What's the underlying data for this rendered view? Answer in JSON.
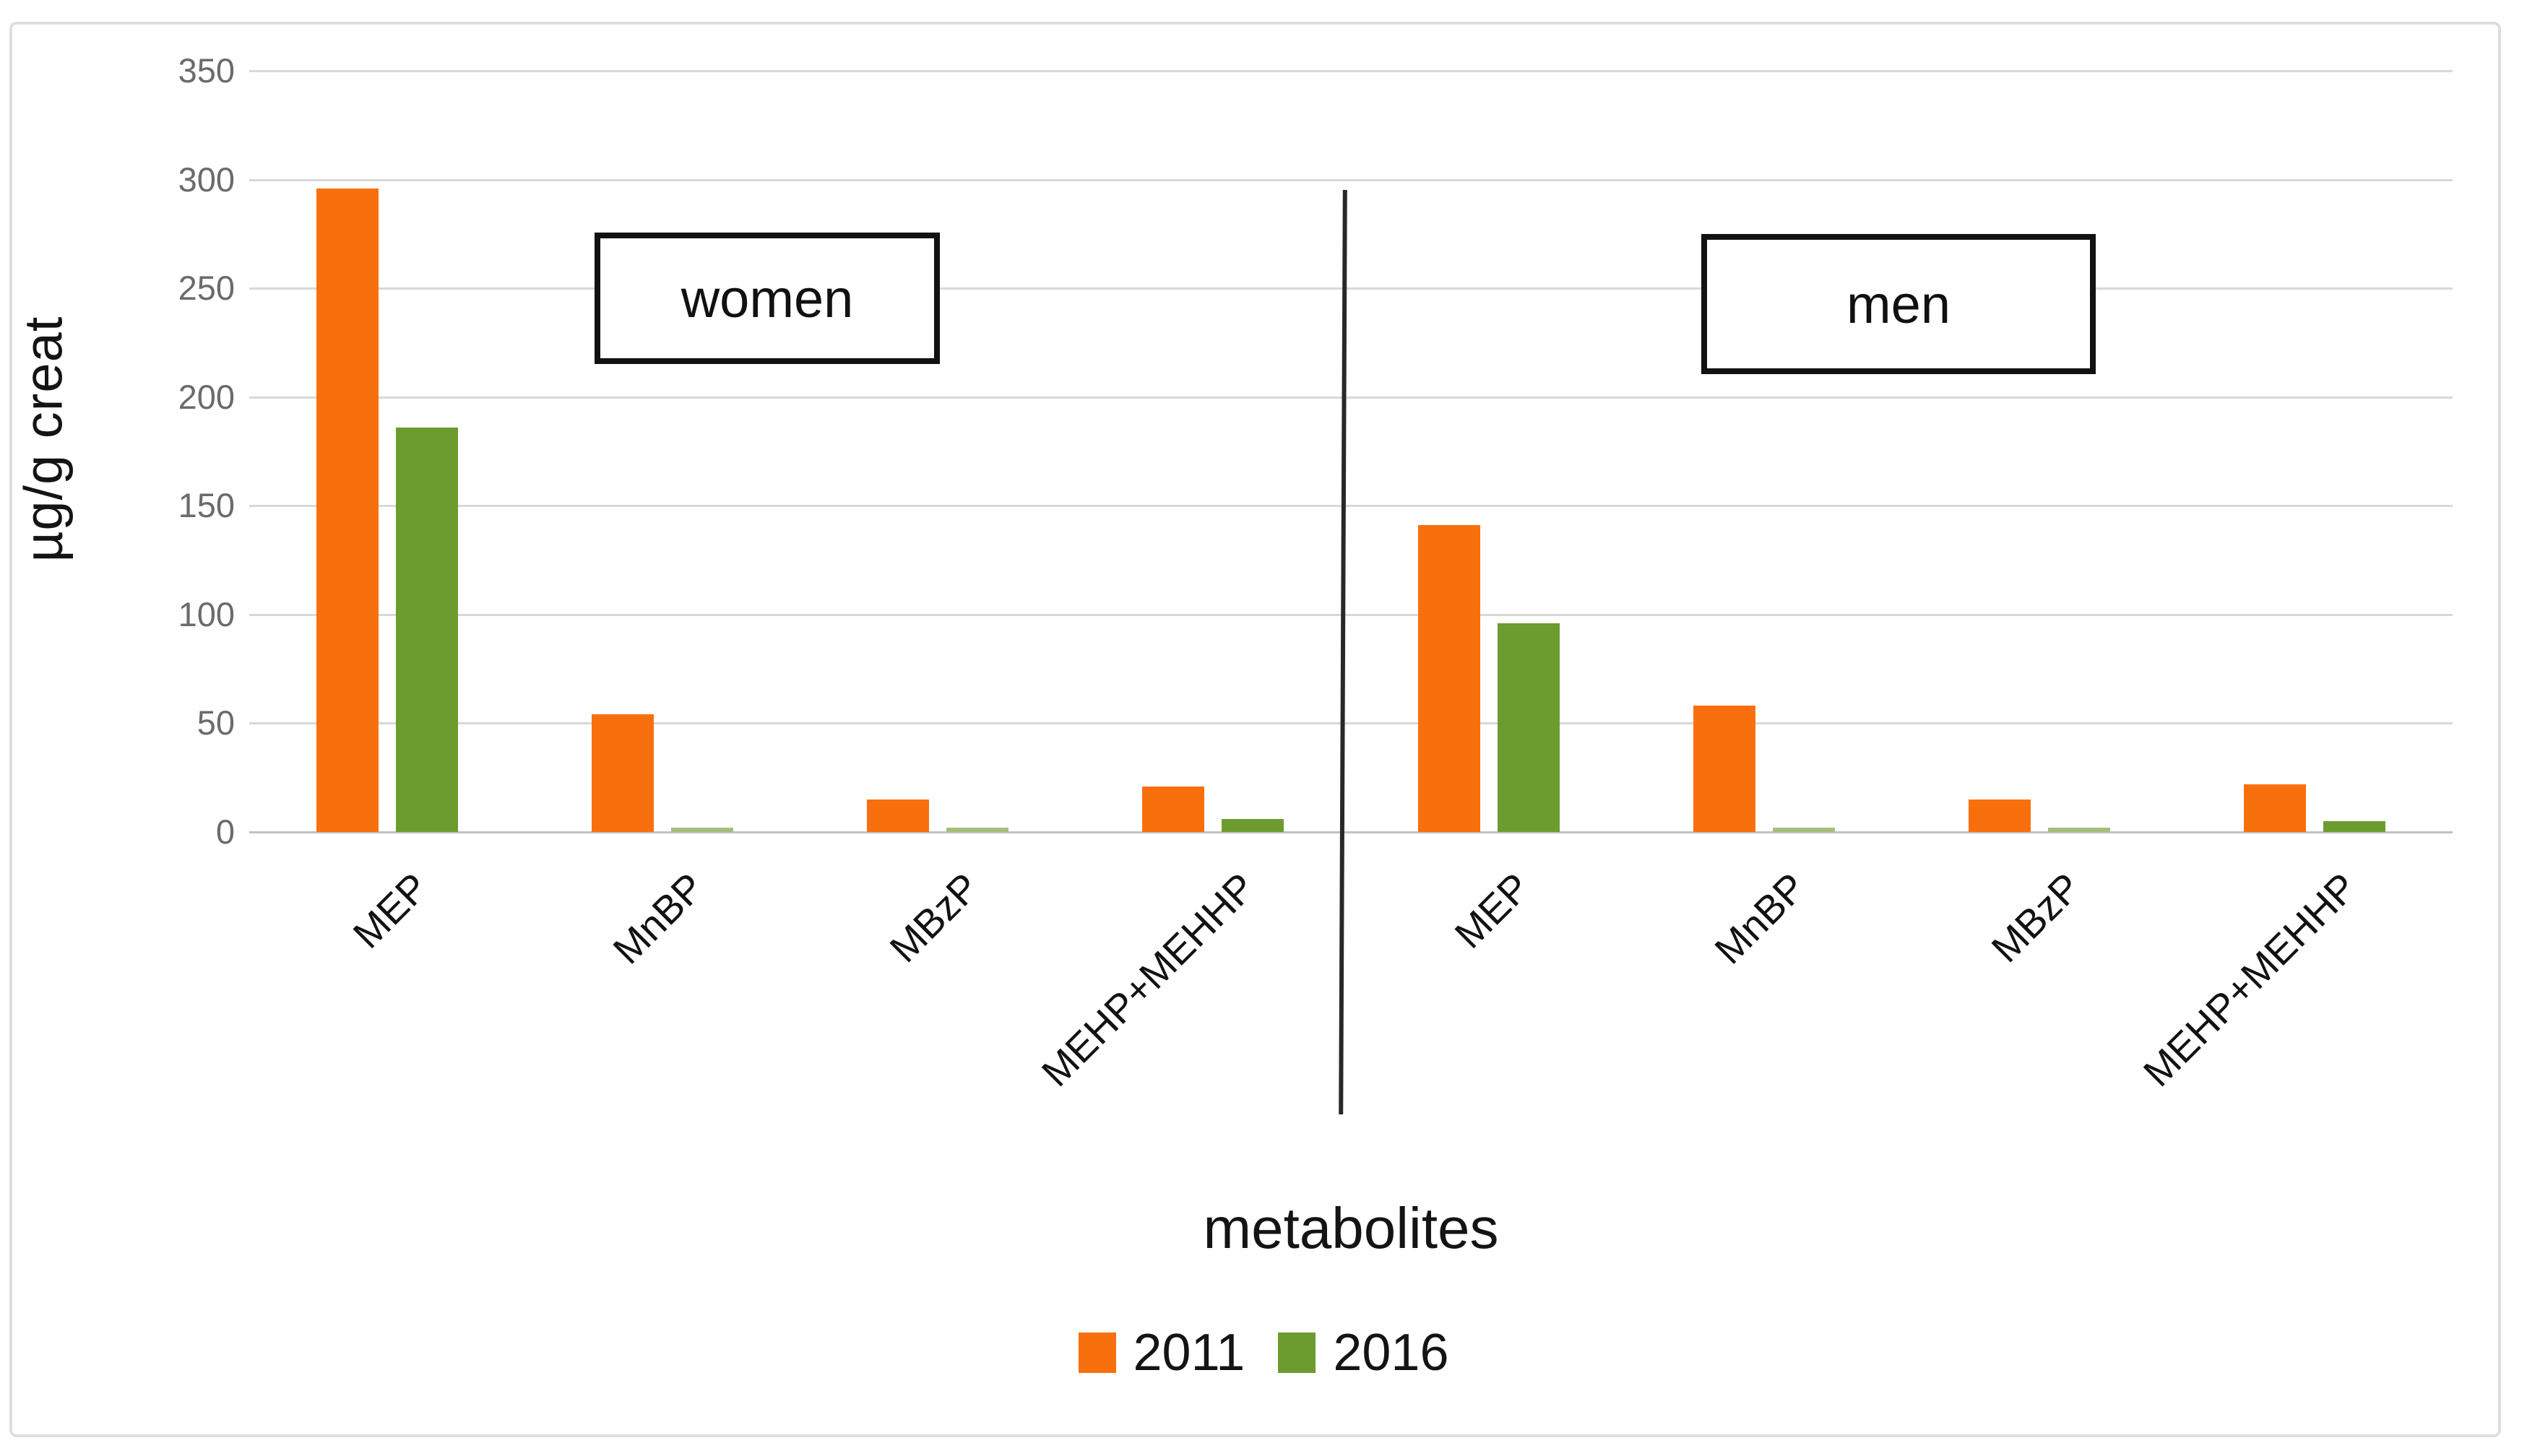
{
  "figure": {
    "background": "#ffffff",
    "border_color": "#dedede"
  },
  "chart_data": {
    "type": "bar",
    "title": "",
    "ylabel": "µg/g creat",
    "xlabel": "metabolites",
    "ylim": [
      0,
      350
    ],
    "ytick_step": 50,
    "yticks": [
      "350",
      "300",
      "250",
      "200",
      "150",
      "100",
      "50",
      "0"
    ],
    "grid": true,
    "legend_position": "bottom",
    "panels": [
      {
        "label": "women",
        "categories": [
          "MEP",
          "MnBP",
          "MBzP",
          "MEHP+MEHHP"
        ],
        "series": [
          {
            "name": "2011",
            "values": [
              296,
              54,
              15,
              21
            ]
          },
          {
            "name": "2016",
            "values": [
              186,
              2,
              2,
              6
            ]
          }
        ]
      },
      {
        "label": "men",
        "categories": [
          "MEP",
          "MnBP",
          "MBzP",
          "MEHP+MEHHP"
        ],
        "series": [
          {
            "name": "2011",
            "values": [
              141,
              58,
              15,
              22
            ]
          },
          {
            "name": "2016",
            "values": [
              96,
              2,
              2,
              5
            ]
          }
        ]
      }
    ],
    "legend": {
      "entries": [
        {
          "label": "2011",
          "color": "#f8700e"
        },
        {
          "label": "2016",
          "color": "#6c9c30"
        }
      ]
    },
    "colors": {
      "series_2011": "#f8700e",
      "series_2016": "#6c9c30",
      "series_2016_small": "#a4be7c",
      "gridline": "#d8d8d8",
      "zeroline": "#c2c2c2",
      "tick_text": "#6b6b6b",
      "text": "#141414",
      "divider": "#282828"
    }
  }
}
